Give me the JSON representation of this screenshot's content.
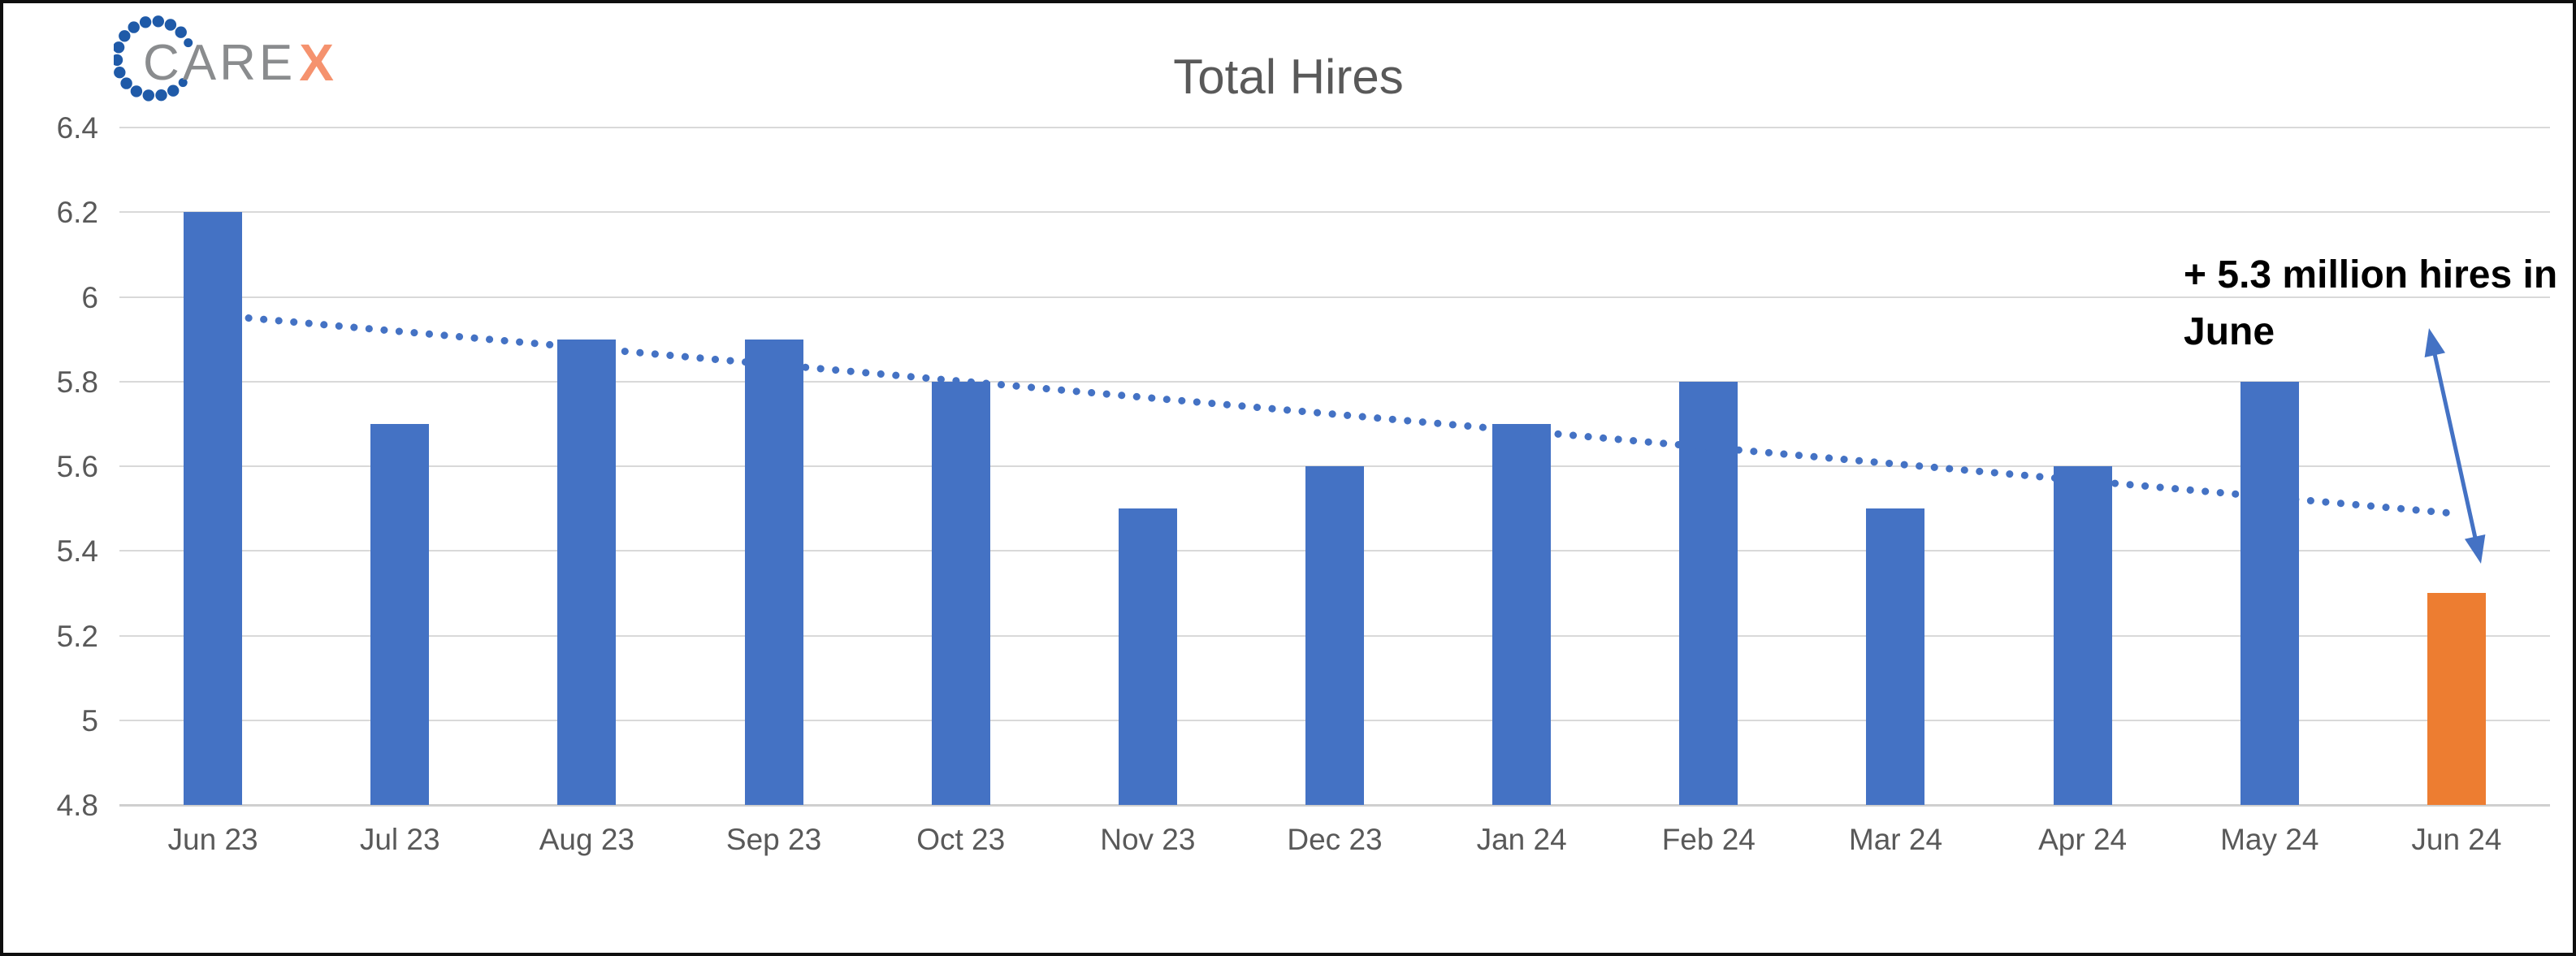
{
  "logo": {
    "text_gray": "CARE",
    "text_accent": "X",
    "gray_color": "#8a8c8e",
    "accent_color": "#f5926e",
    "dot_color": "#1f5aa8"
  },
  "chart_data": {
    "type": "bar",
    "title": "Total Hires",
    "categories": [
      "Jun 23",
      "Jul 23",
      "Aug 23",
      "Sep 23",
      "Oct 23",
      "Nov 23",
      "Dec 23",
      "Jan 24",
      "Feb 24",
      "Mar 24",
      "Apr 24",
      "May 24",
      "Jun 24"
    ],
    "values": [
      6.2,
      5.7,
      5.9,
      5.9,
      5.8,
      5.5,
      5.6,
      5.7,
      5.8,
      5.5,
      5.6,
      5.8,
      5.3
    ],
    "highlight_index": 12,
    "yticks": [
      "6.4",
      "6.2",
      "6",
      "5.8",
      "5.6",
      "5.4",
      "5.2",
      "5",
      "4.8"
    ],
    "ylim": [
      4.8,
      6.4
    ],
    "grid": true,
    "legend": "none",
    "trendline": {
      "style": "dotted",
      "start_value": 5.95,
      "end_value": 5.49
    },
    "annotation": {
      "lines": [
        "+ 5.3 million hires in",
        "June"
      ],
      "full_text": "+ 5.3 million hires in June"
    }
  },
  "colors": {
    "bar_default": "#4472c4",
    "bar_highlight": "#ed7d31",
    "trendline": "#4472c4",
    "arrow": "#4472c4",
    "gridline": "#d9d9d9",
    "axis_text": "#595959",
    "title_text": "#595959",
    "annotation_text": "#000000"
  }
}
